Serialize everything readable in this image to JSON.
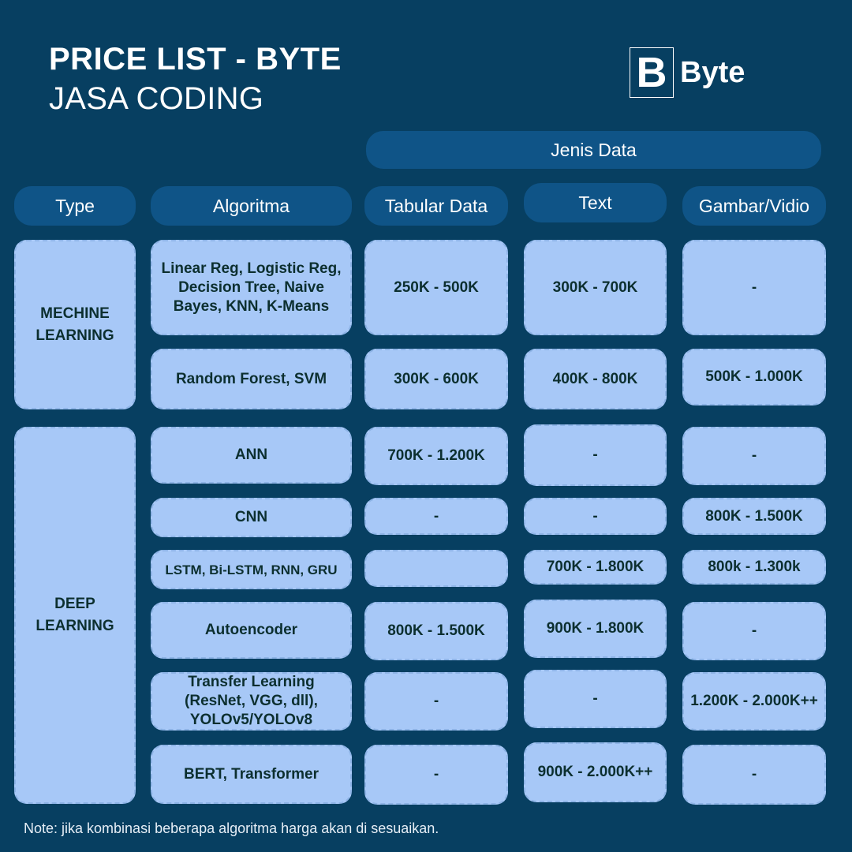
{
  "header": {
    "title": "PRICE LIST - BYTE",
    "subtitle": "JASA CODING",
    "logo_letter": "B",
    "logo_text": "Byte"
  },
  "columns": {
    "group_label": "Jenis Data",
    "type": "Type",
    "algorithm": "Algoritma",
    "tabular": "Tabular Data",
    "text": "Text",
    "image": "Gambar/Vidio"
  },
  "categories": {
    "ml": "MECHINE\nLEARNING",
    "dl": "DEEP\nLEARNING"
  },
  "rows": [
    {
      "algorithm": "Linear Reg, Logistic Reg, Decision Tree, Naive Bayes, KNN, K-Means",
      "tabular": "250K - 500K",
      "text": "300K - 700K",
      "image": "-"
    },
    {
      "algorithm": "Random Forest, SVM",
      "tabular": "300K - 600K",
      "text": "400K - 800K",
      "image": "500K - 1.000K"
    },
    {
      "algorithm": "ANN",
      "tabular": "700K - 1.200K",
      "text": "-",
      "image": "-"
    },
    {
      "algorithm": "CNN",
      "tabular": "-",
      "text": "-",
      "image": "800K - 1.500K"
    },
    {
      "algorithm": "LSTM, Bi-LSTM, RNN, GRU",
      "tabular": "",
      "text": "700K - 1.800K",
      "image": "800k - 1.300k"
    },
    {
      "algorithm": "Autoencoder",
      "tabular": "800K - 1.500K",
      "text": "900K - 1.800K",
      "image": "-"
    },
    {
      "algorithm": "Transfer Learning (ResNet, VGG, dll), YOLOv5/YOLOv8",
      "tabular": "-",
      "text": "-",
      "image": "1.200K - 2.000K++"
    },
    {
      "algorithm": "BERT, Transformer",
      "tabular": "-",
      "text": "900K - 2.000K++",
      "image": "-"
    }
  ],
  "note": "Note: jika kombinasi beberapa algoritma harga akan di sesuaikan.",
  "colors": {
    "background": "#073f61",
    "header_pill": "#0f5487",
    "cell": "#a7c8f7",
    "cell_text": "#0c2f2f"
  }
}
